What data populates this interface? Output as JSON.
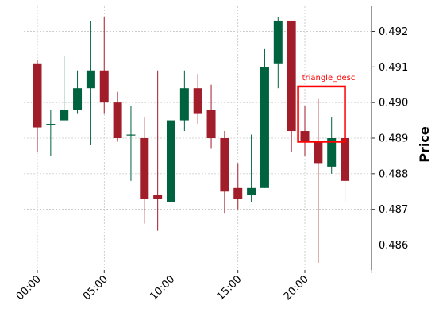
{
  "chart_data": {
    "type": "candlestick",
    "title": "",
    "xlabel": "",
    "ylabel": "Price",
    "x_tick_labels": [
      "00:00",
      "05:00",
      "10:00",
      "15:00",
      "20:00"
    ],
    "y_ticks": [
      0.486,
      0.487,
      0.488,
      0.489,
      0.49,
      0.491,
      0.492
    ],
    "ylim": [
      0.4853,
      0.4927
    ],
    "grid": true,
    "colors": {
      "up": "#006340",
      "down": "#a11d2a",
      "annotation": "#ff0000"
    },
    "candles": [
      {
        "o": 0.4911,
        "h": 0.4912,
        "l": 0.4886,
        "c": 0.4893
      },
      {
        "o": 0.4894,
        "h": 0.4898,
        "l": 0.4885,
        "c": 0.4894
      },
      {
        "o": 0.4895,
        "h": 0.4913,
        "l": 0.4895,
        "c": 0.4898
      },
      {
        "o": 0.4898,
        "h": 0.4909,
        "l": 0.4897,
        "c": 0.4904
      },
      {
        "o": 0.4904,
        "h": 0.4923,
        "l": 0.4888,
        "c": 0.4909
      },
      {
        "o": 0.4909,
        "h": 0.4924,
        "l": 0.4897,
        "c": 0.49
      },
      {
        "o": 0.49,
        "h": 0.4903,
        "l": 0.4889,
        "c": 0.489
      },
      {
        "o": 0.4891,
        "h": 0.4899,
        "l": 0.4878,
        "c": 0.4891
      },
      {
        "o": 0.489,
        "h": 0.4896,
        "l": 0.4866,
        "c": 0.4873
      },
      {
        "o": 0.4874,
        "h": 0.4909,
        "l": 0.4864,
        "c": 0.4873
      },
      {
        "o": 0.4872,
        "h": 0.4898,
        "l": 0.4872,
        "c": 0.4895
      },
      {
        "o": 0.4895,
        "h": 0.4909,
        "l": 0.4892,
        "c": 0.4904
      },
      {
        "o": 0.4904,
        "h": 0.4908,
        "l": 0.4894,
        "c": 0.4897
      },
      {
        "o": 0.4898,
        "h": 0.4905,
        "l": 0.4887,
        "c": 0.489
      },
      {
        "o": 0.489,
        "h": 0.4892,
        "l": 0.4869,
        "c": 0.4875
      },
      {
        "o": 0.4876,
        "h": 0.4883,
        "l": 0.487,
        "c": 0.4873
      },
      {
        "o": 0.4874,
        "h": 0.4891,
        "l": 0.4872,
        "c": 0.4876
      },
      {
        "o": 0.4876,
        "h": 0.4915,
        "l": 0.4876,
        "c": 0.491
      },
      {
        "o": 0.4911,
        "h": 0.4924,
        "l": 0.4904,
        "c": 0.4923
      },
      {
        "o": 0.4923,
        "h": 0.4923,
        "l": 0.4886,
        "c": 0.4892
      },
      {
        "o": 0.4892,
        "h": 0.4899,
        "l": 0.4885,
        "c": 0.4889
      },
      {
        "o": 0.4889,
        "h": 0.4901,
        "l": 0.4855,
        "c": 0.4883
      },
      {
        "o": 0.4882,
        "h": 0.4896,
        "l": 0.488,
        "c": 0.489
      },
      {
        "o": 0.489,
        "h": 0.4891,
        "l": 0.4872,
        "c": 0.4878
      }
    ],
    "annotations": [
      {
        "label": "triangle_desc",
        "x_start": 19.5,
        "x_end": 23.0,
        "y_low": 0.4889,
        "y_high": 0.49045
      }
    ]
  }
}
